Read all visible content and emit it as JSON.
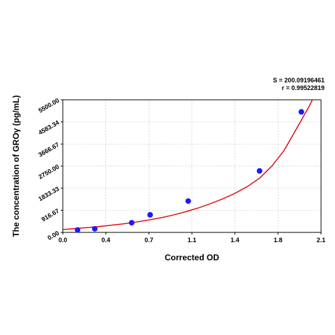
{
  "chart_data": {
    "type": "scatter",
    "xlabel": "Corrected OD",
    "ylabel": "The concentration of GROγ (pg/mL)",
    "xlim": [
      0.0,
      2.1
    ],
    "ylim": [
      0.0,
      5500.0
    ],
    "x_ticks": [
      "0.0",
      "0.4",
      "0.7",
      "1.1",
      "1.4",
      "1.8",
      "2.1"
    ],
    "y_ticks": [
      "0.00",
      "916.67",
      "1833.33",
      "2750.00",
      "3666.67",
      "4583.34",
      "5500.00"
    ],
    "grid": true,
    "stats": {
      "s_label": "S = 200.09196461",
      "r_label": "r = 0.99522819"
    },
    "series": [
      {
        "kind": "points",
        "color": "#1a1aff",
        "points": [
          {
            "x": 0.12,
            "y": 100
          },
          {
            "x": 0.26,
            "y": 150
          },
          {
            "x": 0.56,
            "y": 400
          },
          {
            "x": 0.71,
            "y": 730
          },
          {
            "x": 1.02,
            "y": 1300
          },
          {
            "x": 1.6,
            "y": 2550
          },
          {
            "x": 1.94,
            "y": 5000
          }
        ]
      },
      {
        "kind": "fit",
        "color": "#e00000",
        "x": [
          0.0,
          0.1,
          0.2,
          0.3,
          0.4,
          0.5,
          0.6,
          0.7,
          0.8,
          0.9,
          1.0,
          1.1,
          1.2,
          1.3,
          1.4,
          1.5,
          1.6,
          1.7,
          1.8,
          1.9,
          2.0,
          2.05
        ],
        "y": [
          120,
          160,
          200,
          245,
          300,
          360,
          430,
          515,
          610,
          725,
          860,
          1010,
          1190,
          1390,
          1620,
          1900,
          2250,
          2750,
          3400,
          4300,
          5200,
          5700
        ]
      }
    ]
  }
}
